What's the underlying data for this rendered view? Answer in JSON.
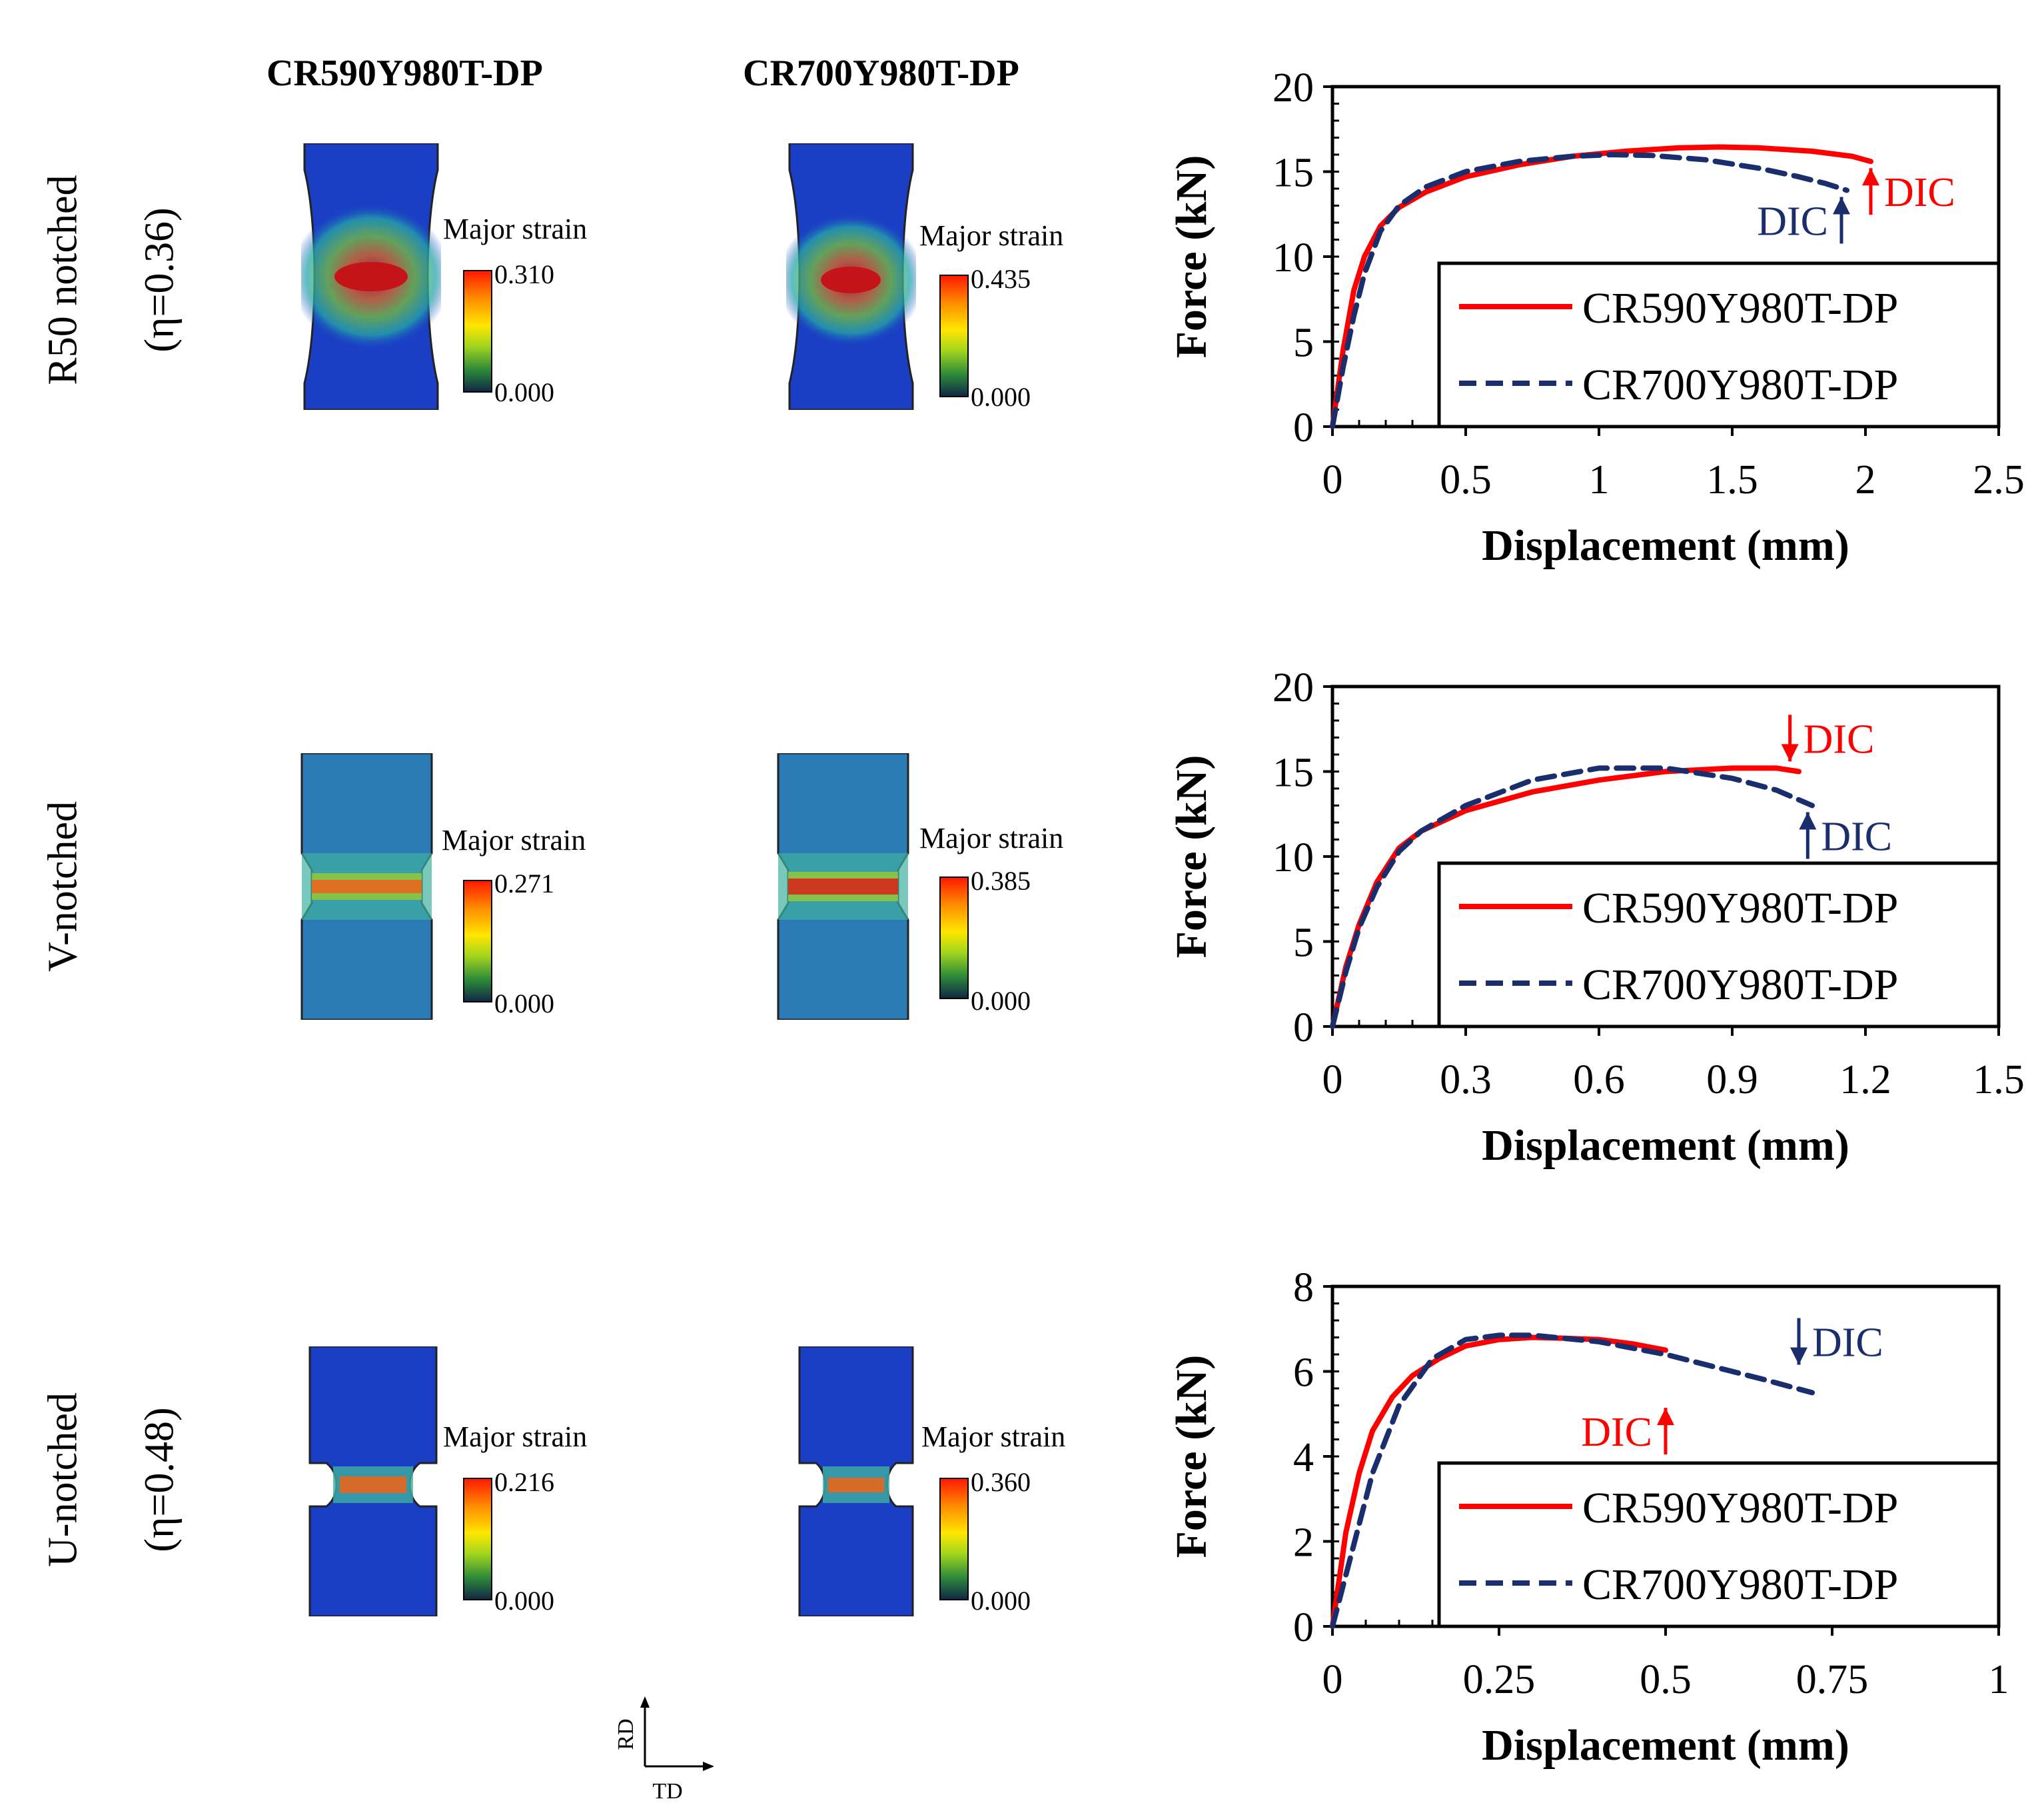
{
  "columns": [
    "CR590Y980T-DP",
    "CR700Y980T-DP"
  ],
  "rows": [
    {
      "label": "R50 notched",
      "eta": "(η=0.36)"
    },
    {
      "label": "V-notched",
      "eta": ""
    },
    {
      "label": "U-notched",
      "eta": "(η=0.48)"
    }
  ],
  "strain_maps": {
    "title": "Major strain",
    "r50_590": {
      "max": "0.310",
      "min": "0.000"
    },
    "r50_700": {
      "max": "0.435",
      "min": "0.000"
    },
    "v_590": {
      "max": "0.271",
      "min": "0.000"
    },
    "v_700": {
      "max": "0.385",
      "min": "0.000"
    },
    "u_590": {
      "max": "0.216",
      "min": "0.000"
    },
    "u_700": {
      "max": "0.360",
      "min": "0.000"
    }
  },
  "axes_indicator": {
    "vertical": "RD",
    "horizontal": "TD"
  },
  "colors": {
    "series1": "#ff0000",
    "series2": "#1a2e6e",
    "map_bg": "#1a3fc4"
  },
  "chart_data": [
    {
      "type": "line",
      "xlabel": "Displacement (mm)",
      "ylabel": "Force (kN)",
      "xlim": [
        0,
        2.5
      ],
      "ylim": [
        0,
        20
      ],
      "xticks": [
        0,
        0.5,
        1,
        1.5,
        2,
        2.5
      ],
      "xtick_labels": [
        "0",
        "0.5",
        "1",
        "1.5",
        "2",
        "2.5"
      ],
      "yticks": [
        0,
        5,
        10,
        15,
        20
      ],
      "ytick_labels": [
        "0",
        "5",
        "10",
        "15",
        "20"
      ],
      "legend": "bottom-right",
      "series": [
        {
          "name": "CR590Y980T-DP",
          "style": "solid",
          "x": [
            0,
            0.04,
            0.08,
            0.12,
            0.18,
            0.25,
            0.35,
            0.5,
            0.7,
            0.9,
            1.1,
            1.3,
            1.45,
            1.6,
            1.8,
            1.95,
            2.02
          ],
          "y": [
            0,
            4.5,
            8.0,
            10.0,
            11.8,
            12.9,
            13.8,
            14.7,
            15.4,
            15.9,
            16.2,
            16.4,
            16.45,
            16.4,
            16.2,
            15.9,
            15.6
          ]
        },
        {
          "name": "CR700Y980T-DP",
          "style": "dashed",
          "x": [
            0,
            0.04,
            0.08,
            0.12,
            0.18,
            0.25,
            0.35,
            0.5,
            0.7,
            0.9,
            1.05,
            1.2,
            1.4,
            1.6,
            1.75,
            1.85,
            1.93
          ],
          "y": [
            0,
            3.5,
            6.5,
            9.0,
            11.5,
            13.0,
            14.1,
            15.0,
            15.6,
            15.9,
            16.0,
            15.95,
            15.7,
            15.2,
            14.7,
            14.3,
            13.9
          ]
        }
      ],
      "annotations": [
        {
          "text": "DIC",
          "series": "CR590Y980T-DP",
          "x": 2.02,
          "y": 15.6,
          "arrow": "up",
          "label_side": "right"
        },
        {
          "text": "DIC",
          "series": "CR700Y980T-DP",
          "x": 1.91,
          "y": 13.9,
          "arrow": "up",
          "label_side": "left"
        }
      ]
    },
    {
      "type": "line",
      "xlabel": "Displacement (mm)",
      "ylabel": "Force (kN)",
      "xlim": [
        0,
        1.5
      ],
      "ylim": [
        0,
        20
      ],
      "xticks": [
        0,
        0.3,
        0.6,
        0.9,
        1.2,
        1.5
      ],
      "xtick_labels": [
        "0",
        "0.3",
        "0.6",
        "0.9",
        "1.2",
        "1.5"
      ],
      "yticks": [
        0,
        5,
        10,
        15,
        20
      ],
      "ytick_labels": [
        "0",
        "5",
        "10",
        "15",
        "20"
      ],
      "legend": "bottom-right",
      "series": [
        {
          "name": "CR590Y980T-DP",
          "style": "solid",
          "x": [
            0,
            0.03,
            0.06,
            0.1,
            0.15,
            0.2,
            0.3,
            0.45,
            0.6,
            0.75,
            0.9,
            1.0,
            1.05
          ],
          "y": [
            0,
            3.5,
            6.0,
            8.5,
            10.5,
            11.5,
            12.7,
            13.8,
            14.5,
            15.0,
            15.2,
            15.2,
            15.0
          ]
        },
        {
          "name": "CR700Y980T-DP",
          "style": "dashed",
          "x": [
            0,
            0.03,
            0.06,
            0.1,
            0.15,
            0.2,
            0.3,
            0.45,
            0.6,
            0.75,
            0.9,
            1.0,
            1.08
          ],
          "y": [
            0,
            3.2,
            5.8,
            8.2,
            10.3,
            11.5,
            13.0,
            14.5,
            15.2,
            15.2,
            14.6,
            13.9,
            13.0
          ]
        }
      ],
      "annotations": [
        {
          "text": "DIC",
          "series": "CR590Y980T-DP",
          "x": 1.03,
          "y": 15.2,
          "arrow": "down",
          "label_side": "right"
        },
        {
          "text": "DIC",
          "series": "CR700Y980T-DP",
          "x": 1.07,
          "y": 13.0,
          "arrow": "up",
          "label_side": "right"
        }
      ]
    },
    {
      "type": "line",
      "xlabel": "Displacement (mm)",
      "ylabel": "Force (kN)",
      "xlim": [
        0,
        1
      ],
      "ylim": [
        0,
        8
      ],
      "xticks": [
        0,
        0.25,
        0.5,
        0.75,
        1
      ],
      "xtick_labels": [
        "0",
        "0.25",
        "0.5",
        "0.75",
        "1"
      ],
      "yticks": [
        0,
        2,
        4,
        6,
        8
      ],
      "ytick_labels": [
        "0",
        "2",
        "4",
        "6",
        "8"
      ],
      "legend": "bottom-right",
      "series": [
        {
          "name": "CR590Y980T-DP",
          "style": "solid",
          "x": [
            0,
            0.02,
            0.04,
            0.06,
            0.09,
            0.12,
            0.16,
            0.2,
            0.25,
            0.3,
            0.35,
            0.4,
            0.45,
            0.5
          ],
          "y": [
            0,
            2.2,
            3.6,
            4.6,
            5.4,
            5.9,
            6.3,
            6.6,
            6.75,
            6.8,
            6.78,
            6.75,
            6.65,
            6.5
          ]
        },
        {
          "name": "CR700Y980T-DP",
          "style": "dashed",
          "x": [
            0,
            0.03,
            0.06,
            0.1,
            0.15,
            0.2,
            0.25,
            0.3,
            0.4,
            0.5,
            0.6,
            0.65,
            0.72
          ],
          "y": [
            0,
            1.8,
            3.6,
            5.2,
            6.3,
            6.75,
            6.85,
            6.85,
            6.7,
            6.4,
            6.0,
            5.8,
            5.5
          ]
        }
      ],
      "annotations": [
        {
          "text": "DIC",
          "series": "CR590Y980T-DP",
          "x": 0.5,
          "y": 5.3,
          "arrow": "up",
          "label_side": "left"
        },
        {
          "text": "DIC",
          "series": "CR700Y980T-DP",
          "x": 0.7,
          "y": 6.0,
          "arrow": "down",
          "label_side": "right"
        }
      ]
    }
  ]
}
